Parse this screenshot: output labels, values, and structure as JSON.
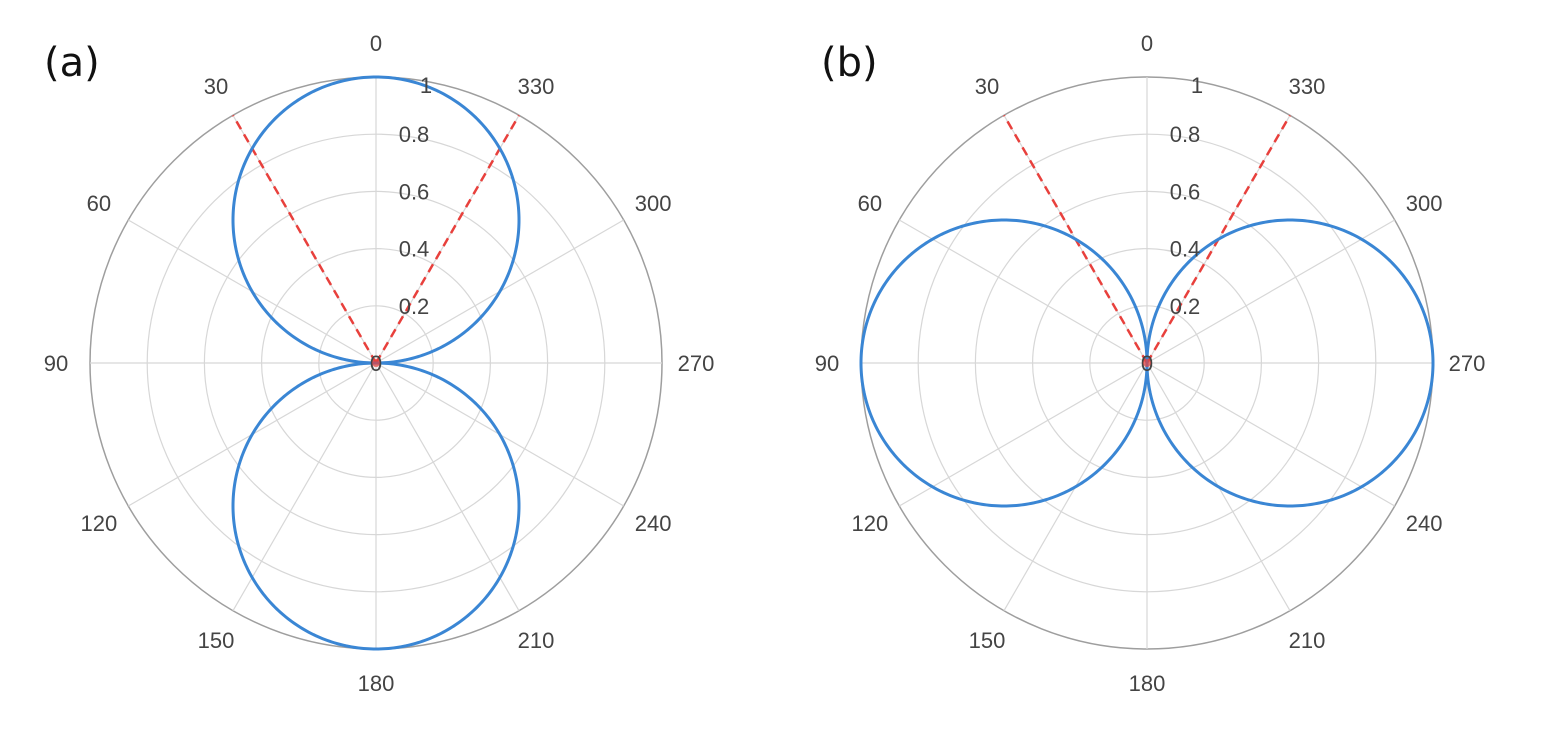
{
  "chart_data": [
    {
      "type": "polar",
      "panel_label": "(a)",
      "theta_direction": "counterclockwise",
      "theta_zero": "top",
      "angle_ticks": [
        "0",
        "30",
        "60",
        "90",
        "120",
        "150",
        "180",
        "210",
        "240",
        "270",
        "300",
        "330"
      ],
      "radial_ticks": [
        "0",
        "0.2",
        "0.4",
        "0.6",
        "0.8",
        "1"
      ],
      "rlim": [
        0,
        1
      ],
      "grid": true,
      "series": [
        {
          "function": "r = |cos(theta)|",
          "color": "#3a86d4",
          "line_style": "solid"
        }
      ],
      "reference_lines": [
        {
          "angle_deg": 30,
          "r": 1.0,
          "color": "#e8403c",
          "line_style": "dashed"
        },
        {
          "angle_deg": 330,
          "r": 1.0,
          "color": "#e8403c",
          "line_style": "dashed"
        }
      ]
    },
    {
      "type": "polar",
      "panel_label": "(b)",
      "theta_direction": "counterclockwise",
      "theta_zero": "top",
      "angle_ticks": [
        "0",
        "30",
        "60",
        "90",
        "120",
        "150",
        "180",
        "210",
        "240",
        "270",
        "300",
        "330"
      ],
      "radial_ticks": [
        "0",
        "0.2",
        "0.4",
        "0.6",
        "0.8",
        "1"
      ],
      "rlim": [
        0,
        1
      ],
      "grid": true,
      "series": [
        {
          "function": "r = |sin(theta)|",
          "color": "#3a86d4",
          "line_style": "solid"
        }
      ],
      "reference_lines": [
        {
          "angle_deg": 30,
          "r": 1.0,
          "color": "#e8403c",
          "line_style": "dashed"
        },
        {
          "angle_deg": 330,
          "r": 1.0,
          "color": "#e8403c",
          "line_style": "dashed"
        }
      ]
    }
  ]
}
